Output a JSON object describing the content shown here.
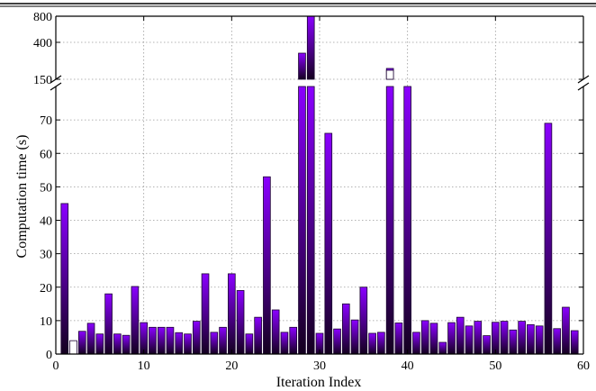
{
  "chart_data": {
    "type": "bar",
    "title": "",
    "xlabel": "Iteration Index",
    "ylabel": "Computation time (s)",
    "xlim": [
      0,
      60
    ],
    "xticks": [
      0,
      10,
      20,
      30,
      40,
      50,
      60
    ],
    "y_axis": {
      "broken": true,
      "lower": {
        "range": [
          0,
          80
        ],
        "ticks": [
          0,
          10,
          20,
          30,
          40,
          50,
          60,
          70
        ]
      },
      "upper": {
        "scale": "log",
        "range": [
          150,
          800
        ],
        "ticks": [
          150,
          400,
          800
        ]
      }
    },
    "grid": true,
    "bar_color_top": "#8a00ff",
    "bar_color_bottom": "#14001f",
    "bar_highlight_color": "#ffffff",
    "highlighted_iterations": [
      2,
      38
    ],
    "series": [
      {
        "x": [
          1,
          2,
          3,
          4,
          5,
          6,
          7,
          8,
          9,
          10,
          11,
          12,
          13,
          14,
          15,
          16,
          17,
          18,
          19,
          20,
          21,
          22,
          23,
          24,
          25,
          26,
          27,
          28,
          29,
          30,
          31,
          32,
          33,
          34,
          35,
          36,
          37,
          38,
          39,
          40,
          41,
          42,
          43,
          44,
          45,
          46,
          47,
          48,
          49,
          50,
          51,
          52,
          53,
          54,
          55,
          56,
          57,
          58,
          59
        ],
        "values": [
          45,
          4,
          6.8,
          9.2,
          6,
          18,
          6,
          5.6,
          20.2,
          9.4,
          8,
          8,
          8,
          6.4,
          6,
          9.8,
          24,
          6.5,
          8,
          24,
          19,
          6,
          11,
          53,
          13.2,
          6.5,
          8,
          300,
          800,
          6.2,
          66,
          7.5,
          15,
          10.2,
          20,
          6.2,
          6.5,
          200,
          9.3,
          130,
          6.5,
          10,
          9.2,
          3.5,
          9.4,
          11,
          8.4,
          9.8,
          5.5,
          9.5,
          9.8,
          7.2,
          9.8,
          8.8,
          8.4,
          69,
          7.6,
          14,
          7
        ]
      }
    ]
  }
}
